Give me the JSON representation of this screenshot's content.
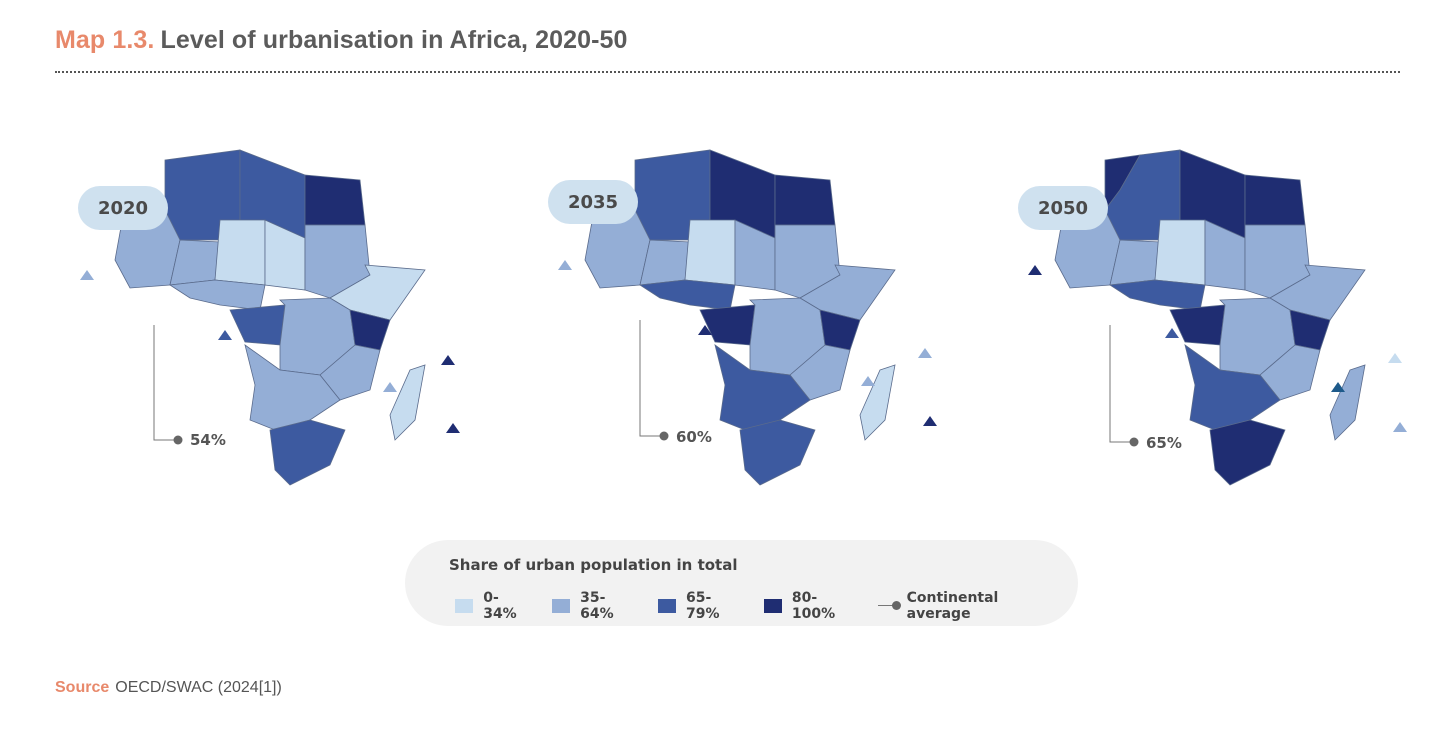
{
  "title": {
    "label": "Map 1.3.",
    "text": "Level of urbanisation in Africa, 2020-50"
  },
  "colors": {
    "c1": "#c6dcef",
    "c2": "#94aed6",
    "c3": "#3d5aa0",
    "c4": "#1f2d72",
    "title_accent": "#e8896b"
  },
  "maps": [
    {
      "year": "2020",
      "average": "54%"
    },
    {
      "year": "2035",
      "average": "60%"
    },
    {
      "year": "2050",
      "average": "65%"
    }
  ],
  "legend": {
    "title": "Share of urban population in total",
    "items": [
      {
        "label": "0-34%",
        "color": "#c6dcef"
      },
      {
        "label": "35-64%",
        "color": "#94aed6"
      },
      {
        "label": "65-79%",
        "color": "#3d5aa0"
      },
      {
        "label": "80-100%",
        "color": "#1f2d72"
      }
    ],
    "average_label": "Continental average"
  },
  "source": {
    "label": "Source",
    "text": "OECD/SWAC (2024[1])"
  }
}
